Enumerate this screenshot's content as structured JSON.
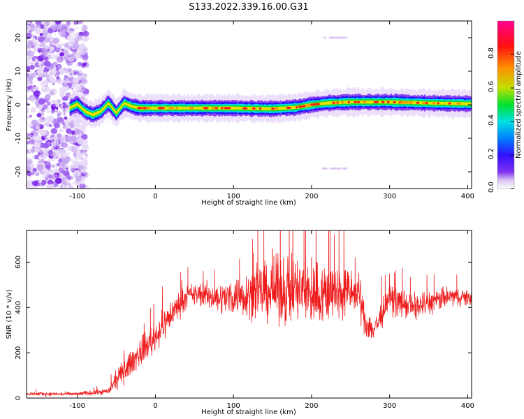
{
  "title": "S133.2022.339.16.00.G31",
  "chart_data": [
    {
      "type": "heatmap",
      "xlabel": "Height of straight line (km)",
      "ylabel": "Frequency (Hz)",
      "xlim": [
        -165,
        405
      ],
      "ylim": [
        -25,
        25
      ],
      "x_ticks": [
        -100,
        0,
        100,
        200,
        300,
        400
      ],
      "y_ticks": [
        -20,
        -10,
        0,
        10,
        20
      ],
      "grid": false,
      "colorbar": {
        "label": "Normalized spectral amplitude",
        "range": [
          0,
          1
        ],
        "ticks": [
          0.0,
          0.2,
          0.4,
          0.6,
          0.8
        ],
        "tick_labels": [
          "0.0",
          "0.2",
          "0.4",
          "0.6",
          "0.8"
        ],
        "colors": [
          "#ffffff",
          "#d8c2f2",
          "#8030f0",
          "#3010ff",
          "#0080ff",
          "#00e0e0",
          "#00e030",
          "#c0e000",
          "#ff9000",
          "#ff1010",
          "#ff0090"
        ]
      },
      "ridge_center_hz": {
        "x": [
          -110,
          -100,
          -90,
          -80,
          -70,
          -60,
          -50,
          -40,
          -30,
          -20,
          0,
          50,
          100,
          150,
          180,
          200,
          220,
          250,
          300,
          350,
          400
        ],
        "y": [
          -1.0,
          0.2,
          -2.0,
          -3.0,
          -2.0,
          0.5,
          -2.5,
          0.5,
          -0.5,
          -1.0,
          -1.0,
          -1.0,
          -1.0,
          -1.2,
          -0.8,
          0.0,
          0.5,
          0.8,
          0.8,
          0.5,
          0.3
        ]
      },
      "noise_region_x": [
        -165,
        -100
      ],
      "noise_region_intensity": 0.35,
      "side_features": [
        {
          "x": [
            215,
            245
          ],
          "y": 20,
          "intensity": 0.15
        },
        {
          "x": [
            215,
            245
          ],
          "y": -19,
          "intensity": 0.15
        }
      ]
    },
    {
      "type": "line",
      "xlabel": "Height of straight line (km)",
      "ylabel": "SNR (10 * v/v)",
      "xlim": [
        -165,
        405
      ],
      "ylim": [
        0,
        740
      ],
      "x_ticks": [
        -100,
        0,
        100,
        200,
        300,
        400
      ],
      "y_ticks": [
        0,
        200,
        400,
        600
      ],
      "grid": false,
      "series": [
        {
          "color": "#ee1c1c",
          "envelope": {
            "x": [
              -165,
              -100,
              -60,
              -50,
              -40,
              -20,
              0,
              20,
              40,
              60,
              80,
              100,
              140,
              170,
              200,
              240,
              260,
              270,
              280,
              300,
              330,
              350,
              380,
              405
            ],
            "mean": [
              18,
              18,
              30,
              80,
              120,
              200,
              270,
              370,
              450,
              460,
              440,
              450,
              470,
              480,
              460,
              470,
              460,
              330,
              300,
              440,
              400,
              420,
              450,
              440
            ],
            "spread": [
              12,
              12,
              20,
              60,
              70,
              90,
              100,
              100,
              70,
              80,
              90,
              120,
              180,
              230,
              220,
              180,
              130,
              100,
              90,
              90,
              90,
              80,
              60,
              50
            ]
          },
          "peaks": [
            [
              160,
              740
            ],
            [
              222,
              740
            ],
            [
              150,
              660
            ],
            [
              200,
              620
            ]
          ]
        }
      ]
    }
  ]
}
